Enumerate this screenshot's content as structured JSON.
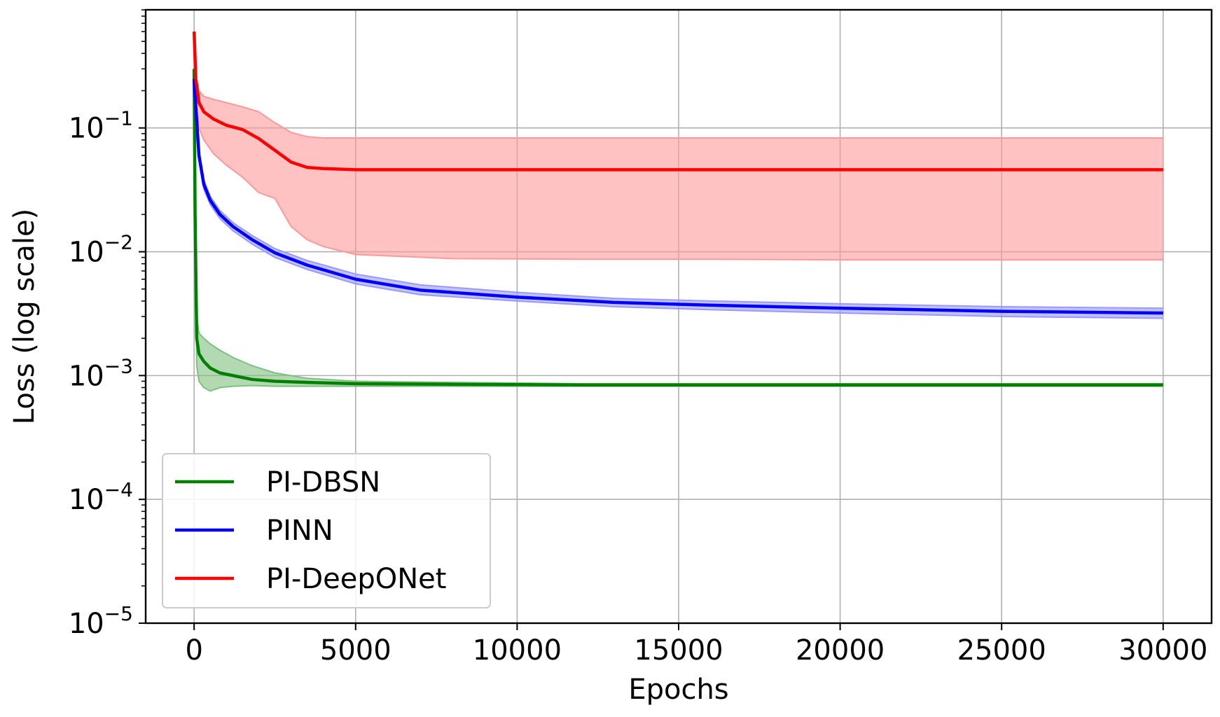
{
  "chart_data": {
    "type": "line",
    "title": "",
    "xlabel": "Epochs",
    "ylabel": "Loss (log scale)",
    "xlim": [
      -1500,
      31500
    ],
    "ylim": [
      1e-05,
      0.9
    ],
    "yscale": "log",
    "grid": true,
    "legend_position": "lower-left",
    "x_ticks": [
      0,
      5000,
      10000,
      15000,
      20000,
      25000,
      30000
    ],
    "x_tick_labels": [
      "0",
      "5000",
      "10000",
      "15000",
      "20000",
      "25000",
      "30000"
    ],
    "y_ticks": [
      {
        "value": 0.1,
        "base": "10",
        "exp": "−1"
      },
      {
        "value": 0.01,
        "base": "10",
        "exp": "−2"
      },
      {
        "value": 0.001,
        "base": "10",
        "exp": "−3"
      },
      {
        "value": 0.0001,
        "base": "10",
        "exp": "−4"
      },
      {
        "value": 1e-05,
        "base": "10",
        "exp": "−5"
      }
    ],
    "series": [
      {
        "name": "PI-DBSN",
        "color": "#008000",
        "band_color": "#7fbf7f",
        "x": [
          0,
          30,
          80,
          150,
          300,
          500,
          800,
          1200,
          1800,
          2500,
          3500,
          5000,
          8000,
          12000,
          16000,
          20000,
          24000,
          28000,
          30000
        ],
        "y": [
          0.3,
          0.02,
          0.002,
          0.0015,
          0.0013,
          0.00115,
          0.00105,
          0.001,
          0.00093,
          0.0009,
          0.00088,
          0.00086,
          0.00085,
          0.00084,
          0.00084,
          0.00084,
          0.00084,
          0.00084,
          0.00084
        ],
        "lower": [
          0.3,
          0.015,
          0.0012,
          0.0009,
          0.0008,
          0.00075,
          0.0008,
          0.00082,
          0.00083,
          0.00082,
          0.00082,
          0.00082,
          0.00082,
          0.00082,
          0.00082,
          0.00082,
          0.00082,
          0.00082,
          0.00082
        ],
        "upper": [
          0.3,
          0.03,
          0.003,
          0.0022,
          0.002,
          0.0018,
          0.0016,
          0.0014,
          0.0012,
          0.00105,
          0.00095,
          0.0009,
          0.00088,
          0.00086,
          0.00086,
          0.00086,
          0.00086,
          0.00086,
          0.00086
        ]
      },
      {
        "name": "PINN",
        "color": "#0000ff",
        "band_color": "#9999ff",
        "x": [
          0,
          50,
          150,
          300,
          500,
          800,
          1200,
          1800,
          2500,
          3500,
          5000,
          7000,
          10000,
          13000,
          16000,
          20000,
          25000,
          30000
        ],
        "y": [
          0.25,
          0.15,
          0.06,
          0.035,
          0.026,
          0.02,
          0.016,
          0.0125,
          0.0098,
          0.0078,
          0.006,
          0.0049,
          0.0043,
          0.0039,
          0.0037,
          0.0035,
          0.0033,
          0.0032
        ],
        "lower": [
          0.25,
          0.14,
          0.055,
          0.032,
          0.024,
          0.0185,
          0.0148,
          0.0115,
          0.009,
          0.0072,
          0.0055,
          0.0045,
          0.004,
          0.0036,
          0.0034,
          0.0032,
          0.003,
          0.0029
        ],
        "upper": [
          0.25,
          0.16,
          0.065,
          0.038,
          0.028,
          0.0215,
          0.0172,
          0.0135,
          0.0106,
          0.0085,
          0.0066,
          0.0054,
          0.0047,
          0.0042,
          0.004,
          0.0038,
          0.0036,
          0.0035
        ]
      },
      {
        "name": "PI-DeepONet",
        "color": "#ff0000",
        "band_color": "#ff9999",
        "x": [
          0,
          50,
          150,
          300,
          600,
          1000,
          1500,
          2000,
          2500,
          3000,
          3500,
          4000,
          5000,
          8000,
          12000,
          16000,
          20000,
          25000,
          30000
        ],
        "y": [
          0.6,
          0.25,
          0.16,
          0.135,
          0.118,
          0.105,
          0.097,
          0.082,
          0.066,
          0.053,
          0.048,
          0.047,
          0.046,
          0.046,
          0.046,
          0.046,
          0.046,
          0.046,
          0.046
        ],
        "lower": [
          0.6,
          0.2,
          0.1,
          0.08,
          0.062,
          0.05,
          0.04,
          0.03,
          0.027,
          0.016,
          0.0125,
          0.011,
          0.0095,
          0.0088,
          0.0087,
          0.0087,
          0.0086,
          0.0086,
          0.0086
        ],
        "upper": [
          0.6,
          0.26,
          0.2,
          0.18,
          0.17,
          0.16,
          0.148,
          0.135,
          0.11,
          0.092,
          0.085,
          0.083,
          0.083,
          0.083,
          0.083,
          0.083,
          0.083,
          0.083,
          0.083
        ]
      }
    ]
  }
}
